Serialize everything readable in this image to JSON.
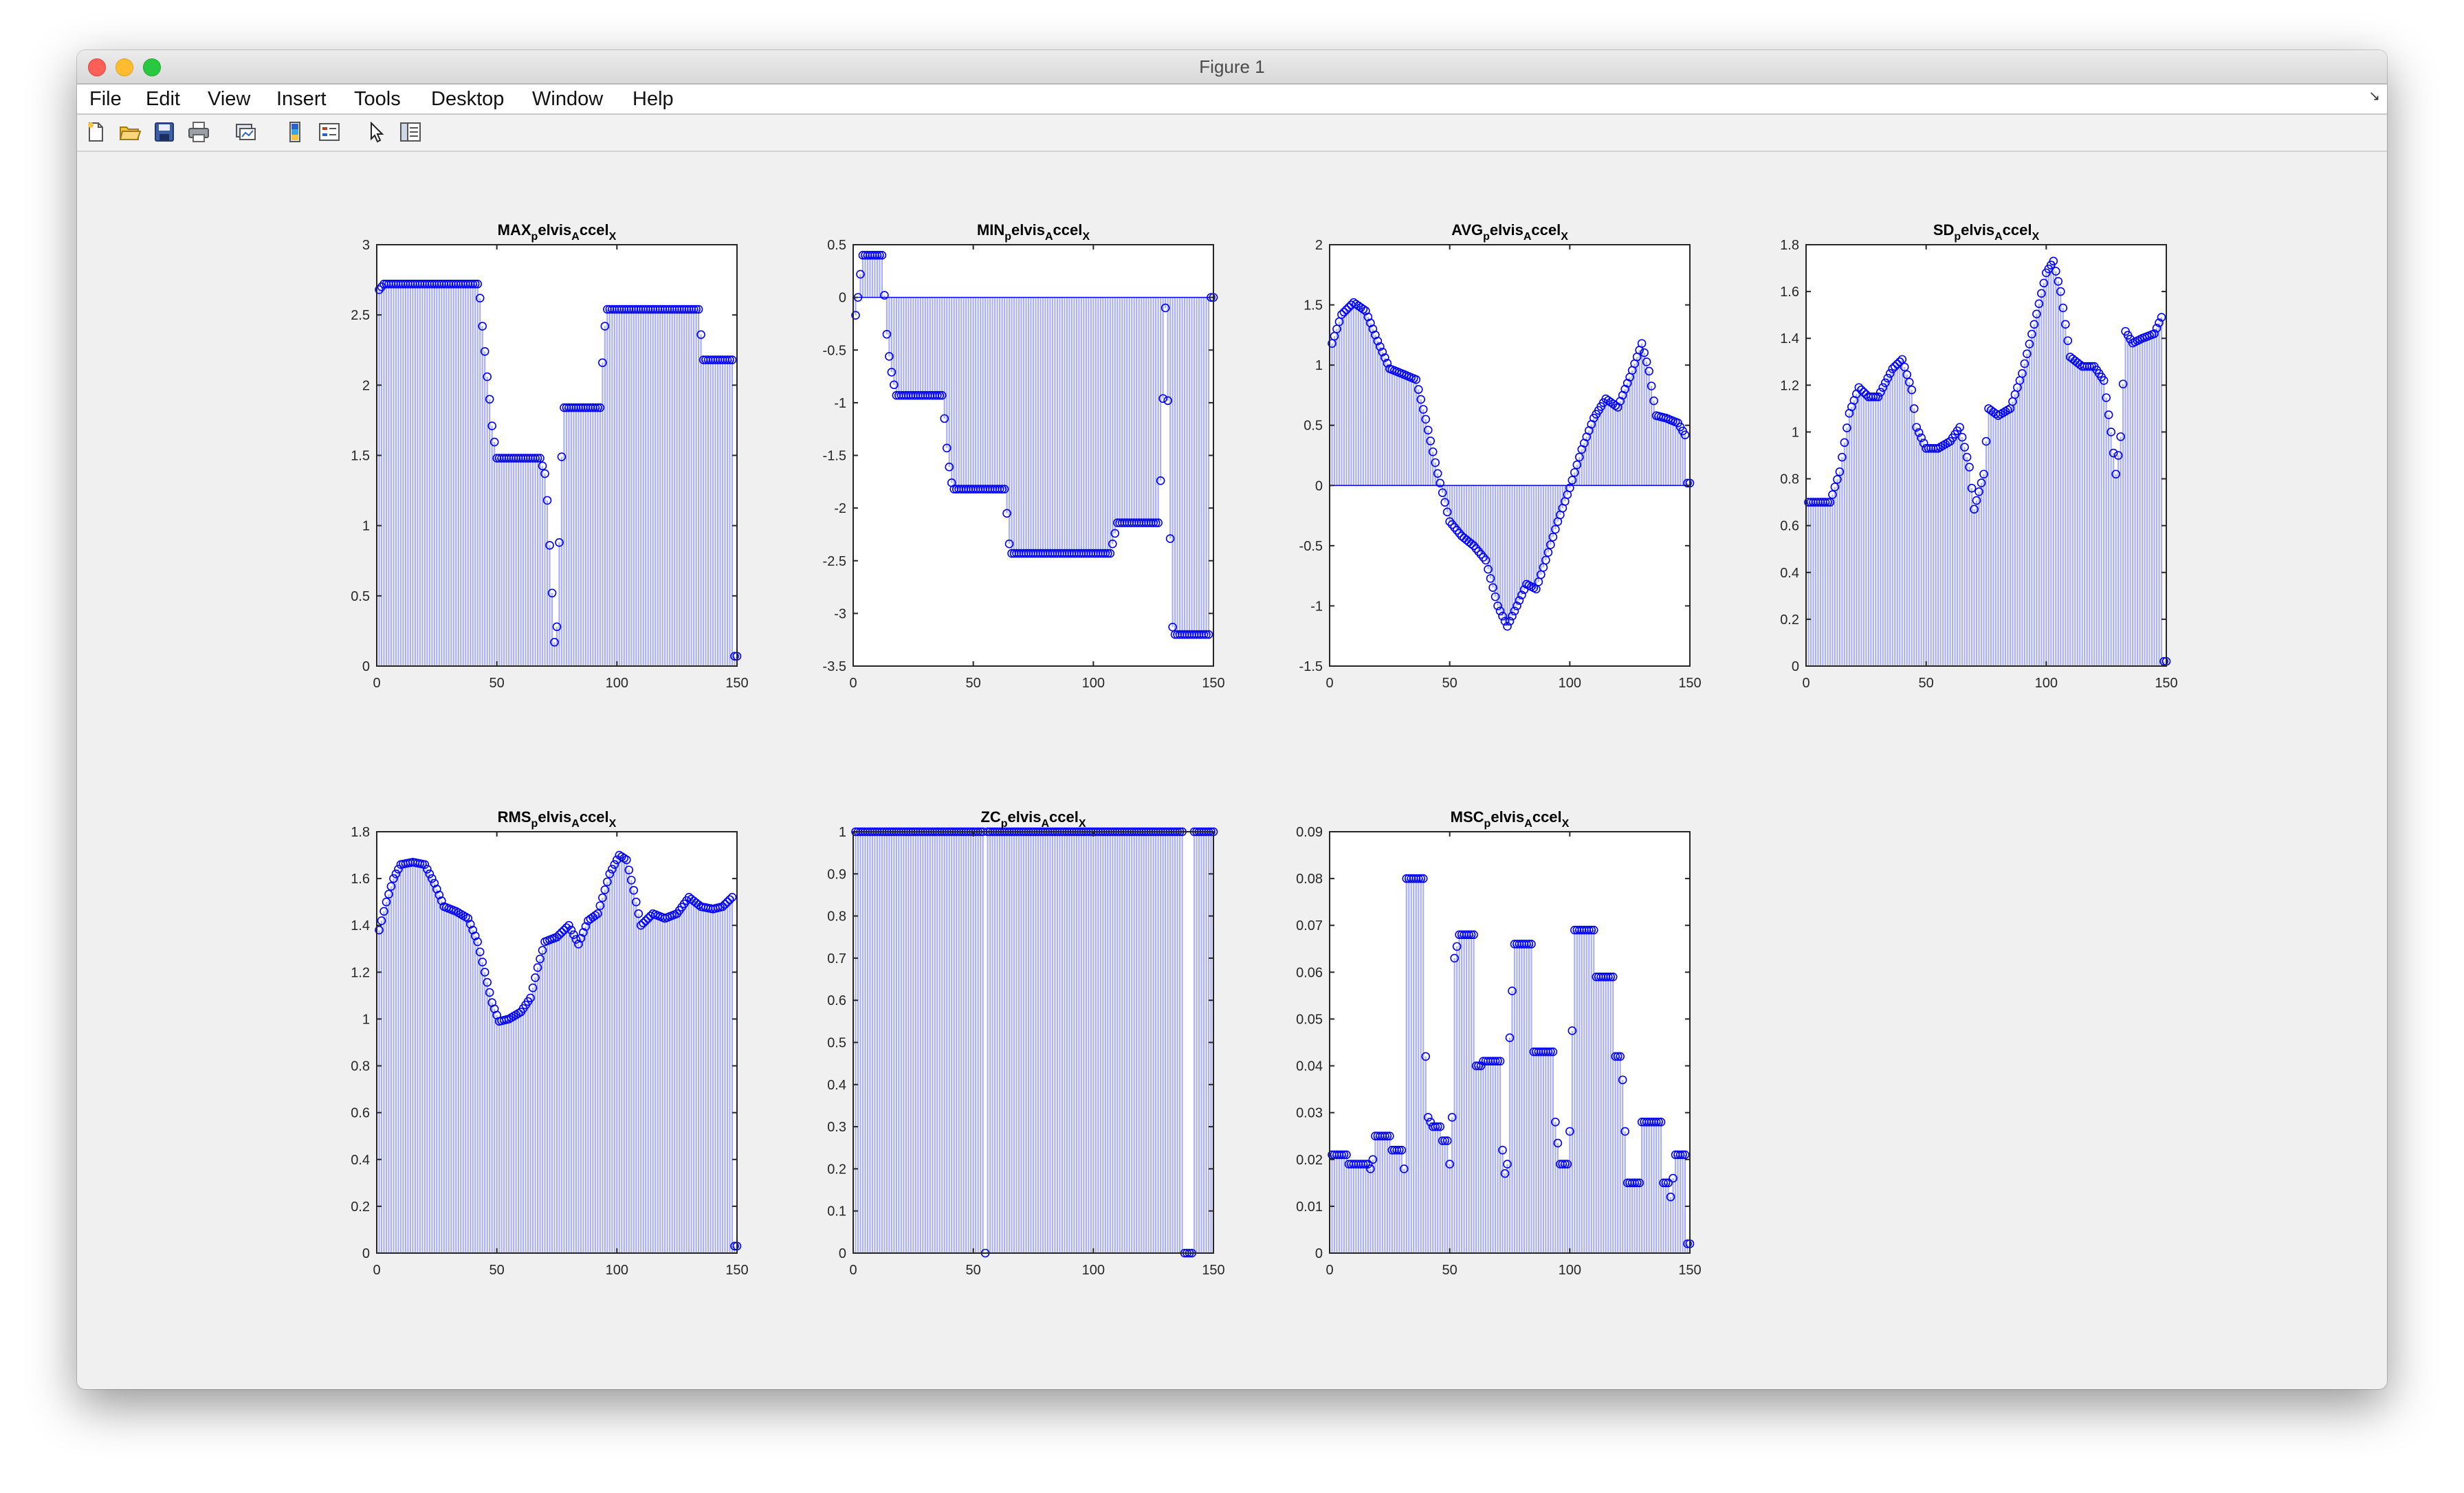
{
  "window": {
    "title": "Figure 1"
  },
  "menu": [
    "File",
    "Edit",
    "View",
    "Insert",
    "Tools",
    "Desktop",
    "Window",
    "Help"
  ],
  "toolbar": [
    {
      "name": "new-figure-icon"
    },
    {
      "name": "open-file-icon"
    },
    {
      "name": "save-icon"
    },
    {
      "name": "print-icon"
    },
    {
      "name": "link-plot-icon"
    },
    {
      "name": "colorbar-icon"
    },
    {
      "name": "legend-icon"
    },
    {
      "name": "edit-plot-cursor-icon"
    },
    {
      "name": "property-inspector-icon"
    }
  ],
  "colors": {
    "marker": "#0000ff",
    "stem": "#aab0f0",
    "axes_bg": "#ffffff"
  },
  "chart_data": [
    {
      "type": "stem",
      "title_main": "MAX",
      "title_sub1": "p",
      "title_mid": "elvis",
      "title_sub2": "A",
      "title_tail": "ccel",
      "title_sub3": "X",
      "xlim": [
        0,
        150
      ],
      "ylim": [
        0,
        3
      ],
      "xticks": [
        "0",
        "50",
        "100",
        "150"
      ],
      "yticks": [
        "0",
        "0.5",
        "1",
        "1.5",
        "2",
        "2.5",
        "3"
      ],
      "keypoints": [
        [
          1,
          2.68
        ],
        [
          3,
          2.72
        ],
        [
          42,
          2.72
        ],
        [
          43,
          2.62
        ],
        [
          44,
          2.42
        ],
        [
          46,
          2.06
        ],
        [
          47,
          1.9
        ],
        [
          48,
          1.71
        ],
        [
          50,
          1.48
        ],
        [
          68,
          1.48
        ],
        [
          70,
          1.37
        ],
        [
          71,
          1.18
        ],
        [
          72,
          0.86
        ],
        [
          73,
          0.52
        ],
        [
          74,
          0.17
        ],
        [
          75,
          0.28
        ],
        [
          76,
          0.88
        ],
        [
          77,
          1.49
        ],
        [
          78,
          1.84
        ],
        [
          93,
          1.84
        ],
        [
          94,
          2.16
        ],
        [
          95,
          2.42
        ],
        [
          96,
          2.54
        ],
        [
          134,
          2.54
        ],
        [
          135,
          2.36
        ],
        [
          136,
          2.18
        ],
        [
          148,
          2.18
        ],
        [
          149,
          0.07
        ],
        [
          150,
          0.07
        ]
      ]
    },
    {
      "type": "stem",
      "title_main": "MIN",
      "title_sub1": "p",
      "title_mid": "elvis",
      "title_sub2": "A",
      "title_tail": "ccel",
      "title_sub3": "X",
      "xlim": [
        0,
        150
      ],
      "ylim": [
        -3.5,
        0.5
      ],
      "xticks": [
        "0",
        "50",
        "100",
        "150"
      ],
      "yticks": [
        "-3.5",
        "-3",
        "-2.5",
        "-2",
        "-1.5",
        "-1",
        "-0.5",
        "0",
        "0.5"
      ],
      "keypoints": [
        [
          1,
          -0.17
        ],
        [
          2,
          0.0
        ],
        [
          3,
          0.22
        ],
        [
          4,
          0.4
        ],
        [
          12,
          0.4
        ],
        [
          13,
          0.02
        ],
        [
          14,
          -0.35
        ],
        [
          15,
          -0.56
        ],
        [
          16,
          -0.71
        ],
        [
          17,
          -0.83
        ],
        [
          18,
          -0.93
        ],
        [
          37,
          -0.93
        ],
        [
          38,
          -1.15
        ],
        [
          39,
          -1.43
        ],
        [
          40,
          -1.61
        ],
        [
          41,
          -1.76
        ],
        [
          42,
          -1.82
        ],
        [
          63,
          -1.82
        ],
        [
          64,
          -2.05
        ],
        [
          65,
          -2.34
        ],
        [
          66,
          -2.43
        ],
        [
          107,
          -2.43
        ],
        [
          108,
          -2.34
        ],
        [
          109,
          -2.24
        ],
        [
          110,
          -2.14
        ],
        [
          127,
          -2.14
        ],
        [
          128,
          -1.74
        ],
        [
          129,
          -0.96
        ],
        [
          130,
          -0.1
        ],
        [
          131,
          -0.98
        ],
        [
          132,
          -2.29
        ],
        [
          133,
          -3.13
        ],
        [
          134,
          -3.2
        ],
        [
          148,
          -3.2
        ],
        [
          149,
          0.0
        ],
        [
          150,
          0.0
        ]
      ]
    },
    {
      "type": "stem",
      "title_main": "AVG",
      "title_sub1": "p",
      "title_mid": "elvis",
      "title_sub2": "A",
      "title_tail": "ccel",
      "title_sub3": "X",
      "xlim": [
        0,
        150
      ],
      "ylim": [
        -1.5,
        2
      ],
      "xticks": [
        "0",
        "50",
        "100",
        "150"
      ],
      "yticks": [
        "-1.5",
        "-1",
        "-0.5",
        "0",
        "0.5",
        "1",
        "1.5",
        "2"
      ],
      "keypoints": [
        [
          1,
          1.18
        ],
        [
          5,
          1.42
        ],
        [
          10,
          1.52
        ],
        [
          15,
          1.45
        ],
        [
          20,
          1.2
        ],
        [
          25,
          0.97
        ],
        [
          30,
          0.93
        ],
        [
          36,
          0.88
        ],
        [
          40,
          0.55
        ],
        [
          45,
          0.1
        ],
        [
          50,
          -0.3
        ],
        [
          55,
          -0.42
        ],
        [
          60,
          -0.5
        ],
        [
          65,
          -0.62
        ],
        [
          70,
          -1.0
        ],
        [
          74,
          -1.17
        ],
        [
          78,
          -1.0
        ],
        [
          82,
          -0.82
        ],
        [
          86,
          -0.86
        ],
        [
          90,
          -0.62
        ],
        [
          95,
          -0.3
        ],
        [
          100,
          -0.02
        ],
        [
          105,
          0.3
        ],
        [
          110,
          0.56
        ],
        [
          115,
          0.72
        ],
        [
          120,
          0.65
        ],
        [
          125,
          0.9
        ],
        [
          130,
          1.18
        ],
        [
          133,
          0.95
        ],
        [
          136,
          0.58
        ],
        [
          140,
          0.56
        ],
        [
          145,
          0.52
        ],
        [
          148,
          0.42
        ],
        [
          149,
          0.02
        ],
        [
          150,
          0.02
        ]
      ]
    },
    {
      "type": "stem",
      "title_main": "SD",
      "title_sub1": "p",
      "title_mid": "elvis",
      "title_sub2": "A",
      "title_tail": "ccel",
      "title_sub3": "X",
      "xlim": [
        0,
        150
      ],
      "ylim": [
        0,
        1.8
      ],
      "xticks": [
        "0",
        "50",
        "100",
        "150"
      ],
      "yticks": [
        "0",
        "0.2",
        "0.4",
        "0.6",
        "0.8",
        "1",
        "1.2",
        "1.4",
        "1.6",
        "1.8"
      ],
      "keypoints": [
        [
          1,
          0.7
        ],
        [
          5,
          0.7
        ],
        [
          10,
          0.7
        ],
        [
          14,
          0.83
        ],
        [
          18,
          1.08
        ],
        [
          22,
          1.19
        ],
        [
          26,
          1.15
        ],
        [
          30,
          1.15
        ],
        [
          36,
          1.27
        ],
        [
          40,
          1.31
        ],
        [
          44,
          1.18
        ],
        [
          46,
          1.02
        ],
        [
          50,
          0.93
        ],
        [
          55,
          0.93
        ],
        [
          60,
          0.96
        ],
        [
          64,
          1.02
        ],
        [
          68,
          0.85
        ],
        [
          70,
          0.67
        ],
        [
          74,
          0.82
        ],
        [
          76,
          1.1
        ],
        [
          80,
          1.07
        ],
        [
          85,
          1.1
        ],
        [
          90,
          1.25
        ],
        [
          95,
          1.46
        ],
        [
          100,
          1.68
        ],
        [
          103,
          1.73
        ],
        [
          106,
          1.6
        ],
        [
          110,
          1.32
        ],
        [
          115,
          1.28
        ],
        [
          120,
          1.28
        ],
        [
          124,
          1.22
        ],
        [
          127,
          1.0
        ],
        [
          129,
          0.82
        ],
        [
          131,
          0.98
        ],
        [
          133,
          1.43
        ],
        [
          136,
          1.38
        ],
        [
          140,
          1.4
        ],
        [
          145,
          1.42
        ],
        [
          148,
          1.49
        ],
        [
          149,
          0.02
        ],
        [
          150,
          0.02
        ]
      ]
    },
    {
      "type": "stem",
      "title_main": "RMS",
      "title_sub1": "p",
      "title_mid": "elvis",
      "title_sub2": "A",
      "title_tail": "ccel",
      "title_sub3": "X",
      "xlim": [
        0,
        150
      ],
      "ylim": [
        0,
        1.8
      ],
      "xticks": [
        "0",
        "50",
        "100",
        "150"
      ],
      "yticks": [
        "0",
        "0.2",
        "0.4",
        "0.6",
        "0.8",
        "1",
        "1.2",
        "1.4",
        "1.6",
        "1.8"
      ],
      "keypoints": [
        [
          1,
          1.38
        ],
        [
          4,
          1.5
        ],
        [
          7,
          1.6
        ],
        [
          10,
          1.66
        ],
        [
          15,
          1.67
        ],
        [
          20,
          1.66
        ],
        [
          24,
          1.58
        ],
        [
          28,
          1.48
        ],
        [
          33,
          1.46
        ],
        [
          38,
          1.43
        ],
        [
          42,
          1.33
        ],
        [
          45,
          1.2
        ],
        [
          48,
          1.07
        ],
        [
          51,
          0.99
        ],
        [
          55,
          1.0
        ],
        [
          60,
          1.03
        ],
        [
          64,
          1.09
        ],
        [
          67,
          1.22
        ],
        [
          70,
          1.33
        ],
        [
          75,
          1.35
        ],
        [
          80,
          1.4
        ],
        [
          84,
          1.32
        ],
        [
          88,
          1.42
        ],
        [
          92,
          1.45
        ],
        [
          97,
          1.62
        ],
        [
          101,
          1.7
        ],
        [
          104,
          1.68
        ],
        [
          107,
          1.55
        ],
        [
          110,
          1.4
        ],
        [
          115,
          1.45
        ],
        [
          120,
          1.43
        ],
        [
          125,
          1.45
        ],
        [
          130,
          1.52
        ],
        [
          135,
          1.48
        ],
        [
          140,
          1.47
        ],
        [
          144,
          1.48
        ],
        [
          148,
          1.52
        ],
        [
          149,
          0.03
        ],
        [
          150,
          0.03
        ]
      ]
    },
    {
      "type": "stem",
      "title_main": "ZC",
      "title_sub1": "p",
      "title_mid": "elvis",
      "title_sub2": "A",
      "title_tail": "ccel",
      "title_sub3": "X",
      "xlim": [
        0,
        150
      ],
      "ylim": [
        0,
        1
      ],
      "xticks": [
        "0",
        "50",
        "100",
        "150"
      ],
      "yticks": [
        "0",
        "0.1",
        "0.2",
        "0.3",
        "0.4",
        "0.5",
        "0.6",
        "0.7",
        "0.8",
        "0.9",
        "1"
      ],
      "keypoints": [
        [
          1,
          1
        ],
        [
          54,
          1
        ],
        [
          55,
          0
        ],
        [
          56,
          1
        ],
        [
          137,
          1
        ],
        [
          138,
          0
        ],
        [
          141,
          0
        ],
        [
          142,
          1
        ],
        [
          150,
          1
        ]
      ]
    },
    {
      "type": "stem",
      "title_main": "MSC",
      "title_sub1": "p",
      "title_mid": "elvis",
      "title_sub2": "A",
      "title_tail": "ccel",
      "title_sub3": "X",
      "xlim": [
        0,
        150
      ],
      "ylim": [
        0,
        0.09
      ],
      "xticks": [
        "0",
        "50",
        "100",
        "150"
      ],
      "yticks": [
        "0",
        "0.01",
        "0.02",
        "0.03",
        "0.04",
        "0.05",
        "0.06",
        "0.07",
        "0.08",
        "0.09"
      ],
      "keypoints": [
        [
          1,
          0.021
        ],
        [
          7,
          0.021
        ],
        [
          8,
          0.019
        ],
        [
          16,
          0.019
        ],
        [
          17,
          0.018
        ],
        [
          18,
          0.02
        ],
        [
          19,
          0.025
        ],
        [
          25,
          0.025
        ],
        [
          26,
          0.022
        ],
        [
          30,
          0.022
        ],
        [
          31,
          0.018
        ],
        [
          32,
          0.08
        ],
        [
          39,
          0.08
        ],
        [
          40,
          0.042
        ],
        [
          41,
          0.029
        ],
        [
          43,
          0.027
        ],
        [
          46,
          0.027
        ],
        [
          47,
          0.024
        ],
        [
          49,
          0.024
        ],
        [
          50,
          0.019
        ],
        [
          51,
          0.029
        ],
        [
          52,
          0.063
        ],
        [
          54,
          0.068
        ],
        [
          60,
          0.068
        ],
        [
          61,
          0.04
        ],
        [
          63,
          0.04
        ],
        [
          64,
          0.041
        ],
        [
          71,
          0.041
        ],
        [
          72,
          0.022
        ],
        [
          73,
          0.017
        ],
        [
          74,
          0.019
        ],
        [
          75,
          0.046
        ],
        [
          77,
          0.066
        ],
        [
          84,
          0.066
        ],
        [
          85,
          0.043
        ],
        [
          93,
          0.043
        ],
        [
          94,
          0.028
        ],
        [
          96,
          0.019
        ],
        [
          99,
          0.019
        ],
        [
          100,
          0.026
        ],
        [
          102,
          0.069
        ],
        [
          110,
          0.069
        ],
        [
          111,
          0.059
        ],
        [
          118,
          0.059
        ],
        [
          119,
          0.042
        ],
        [
          121,
          0.042
        ],
        [
          122,
          0.037
        ],
        [
          124,
          0.015
        ],
        [
          129,
          0.015
        ],
        [
          130,
          0.028
        ],
        [
          138,
          0.028
        ],
        [
          139,
          0.015
        ],
        [
          141,
          0.015
        ],
        [
          142,
          0.012
        ],
        [
          143,
          0.016
        ],
        [
          144,
          0.021
        ],
        [
          148,
          0.021
        ],
        [
          149,
          0.002
        ],
        [
          150,
          0.002
        ]
      ]
    }
  ]
}
